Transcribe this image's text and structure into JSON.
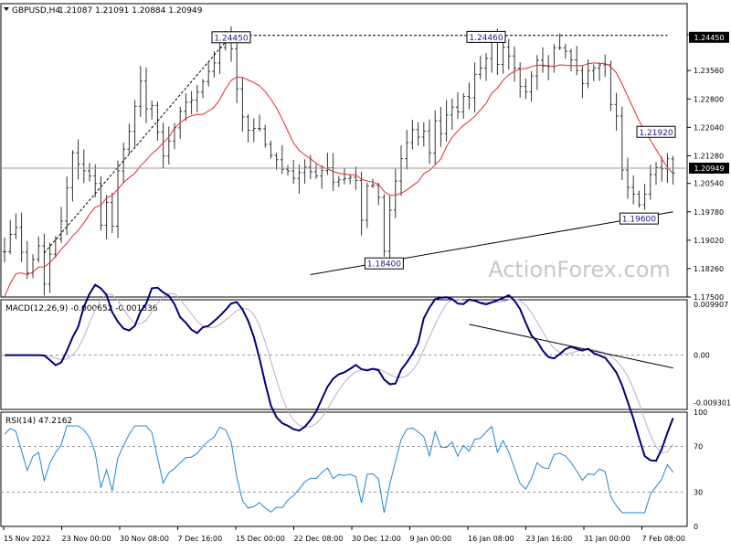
{
  "chart_data": {
    "type": "candlestick",
    "instrument": "GBPUSD,H4",
    "ohlc_label": "1.21087 1.21091 1.20884 1.20949",
    "watermark": "ActionForex.com",
    "colors": {
      "candles": "#333333",
      "ma": "#e8272d",
      "annotation_line": "#000000",
      "price_marker_bg": "#000000",
      "macd_line": "#00007a",
      "macd_signal": "#c7a8c7",
      "rsi_line": "#1f87d0",
      "ref_line": "#9a9a9a",
      "frame": "#000000"
    },
    "x_axis": {
      "labels": [
        "15 Nov 2022",
        "23 Nov 00:00",
        "30 Nov 08:00",
        "7 Dec 16:00",
        "15 Dec 00:00",
        "22 Dec 08:00",
        "30 Dec 12:00",
        "9 Jan 00:00",
        "16 Jan 08:00",
        "23 Jan 16:00",
        "31 Jan 00:00",
        "7 Feb 08:00"
      ]
    },
    "price_panel": {
      "ylim": [
        1.175,
        1.2535
      ],
      "tick_labels": [
        "1.24520",
        "1.23560",
        "1.22800",
        "1.22040",
        "1.21280",
        "1.20540",
        "1.19780",
        "1.19020",
        "1.18260",
        "1.17500"
      ],
      "tick_values": [
        1.2452,
        1.2356,
        1.228,
        1.2204,
        1.2128,
        1.2054,
        1.1978,
        1.1902,
        1.1826,
        1.175
      ],
      "current_price": "1.20949",
      "current_price_value": 1.20949,
      "resistance_level": "1.24450",
      "resistance_value": 1.2445,
      "annotations": [
        {
          "label": "1.24450",
          "bar": 40,
          "value": 1.2445
        },
        {
          "label": "1.24460",
          "bar": 85,
          "value": 1.2446
        },
        {
          "label": "1.18400",
          "bar": 67,
          "value": 1.184
        },
        {
          "label": "1.21920",
          "bar": 115,
          "value": 1.2192
        },
        {
          "label": "1.19600",
          "bar": 112,
          "value": 1.196
        }
      ],
      "trendlines": [
        {
          "from": [
            54,
            1.181
          ],
          "to": [
            118,
            1.1978
          ]
        },
        {
          "from": [
            7,
            1.1868
          ],
          "to": [
            40,
            1.245
          ]
        },
        {
          "from": [
            40,
            1.245
          ],
          "to": [
            117,
            1.245
          ]
        }
      ],
      "close_path": [
        [
          0,
          1.188
        ],
        [
          2,
          1.194
        ],
        [
          4,
          1.181
        ],
        [
          6,
          1.189
        ],
        [
          7,
          1.178
        ],
        [
          8,
          1.186
        ],
        [
          10,
          1.195
        ],
        [
          12,
          1.213
        ],
        [
          14,
          1.209
        ],
        [
          16,
          1.205
        ],
        [
          17,
          1.195
        ],
        [
          18,
          1.2
        ],
        [
          19,
          1.194
        ],
        [
          20,
          1.208
        ],
        [
          22,
          1.22
        ],
        [
          24,
          1.232
        ],
        [
          25,
          1.225
        ],
        [
          26,
          1.226
        ],
        [
          28,
          1.212
        ],
        [
          29,
          1.216
        ],
        [
          31,
          1.225
        ],
        [
          33,
          1.228
        ],
        [
          35,
          1.233
        ],
        [
          37,
          1.238
        ],
        [
          39,
          1.244
        ],
        [
          40,
          1.241
        ],
        [
          41,
          1.23
        ],
        [
          42,
          1.224
        ],
        [
          43,
          1.22
        ],
        [
          45,
          1.22
        ],
        [
          46,
          1.216
        ],
        [
          48,
          1.211
        ],
        [
          50,
          1.209
        ],
        [
          51,
          1.207
        ],
        [
          53,
          1.209
        ],
        [
          55,
          1.208
        ],
        [
          57,
          1.21
        ],
        [
          58,
          1.206
        ],
        [
          60,
          1.207
        ],
        [
          61,
          1.207
        ],
        [
          62,
          1.206
        ],
        [
          63,
          1.196
        ],
        [
          64,
          1.204
        ],
        [
          65,
          1.205
        ],
        [
          66,
          1.201
        ],
        [
          67,
          1.187
        ],
        [
          68,
          1.198
        ],
        [
          69,
          1.206
        ],
        [
          70,
          1.212
        ],
        [
          71,
          1.216
        ],
        [
          72,
          1.219
        ],
        [
          73,
          1.218
        ],
        [
          74,
          1.219
        ],
        [
          75,
          1.214
        ],
        [
          76,
          1.222
        ],
        [
          77,
          1.219
        ],
        [
          78,
          1.224
        ],
        [
          79,
          1.226
        ],
        [
          80,
          1.224
        ],
        [
          81,
          1.228
        ],
        [
          82,
          1.229
        ],
        [
          83,
          1.234
        ],
        [
          84,
          1.237
        ],
        [
          85,
          1.239
        ],
        [
          86,
          1.244
        ],
        [
          87,
          1.238
        ],
        [
          88,
          1.241
        ],
        [
          89,
          1.24
        ],
        [
          90,
          1.236
        ],
        [
          91,
          1.232
        ],
        [
          92,
          1.23
        ],
        [
          93,
          1.234
        ],
        [
          94,
          1.239
        ],
        [
          95,
          1.236
        ],
        [
          96,
          1.236
        ],
        [
          97,
          1.241
        ],
        [
          98,
          1.241
        ],
        [
          99,
          1.24
        ],
        [
          100,
          1.238
        ],
        [
          101,
          1.236
        ],
        [
          102,
          1.233
        ],
        [
          103,
          1.236
        ],
        [
          104,
          1.237
        ],
        [
          105,
          1.238
        ],
        [
          106,
          1.237
        ],
        [
          107,
          1.227
        ],
        [
          108,
          1.223
        ],
        [
          109,
          1.209
        ],
        [
          110,
          1.204
        ],
        [
          111,
          1.203
        ],
        [
          112,
          1.199
        ],
        [
          113,
          1.203
        ],
        [
          114,
          1.208
        ],
        [
          115,
          1.209
        ],
        [
          116,
          1.21
        ],
        [
          117,
          1.212
        ],
        [
          118,
          1.209
        ]
      ]
    },
    "macd_panel": {
      "label": "MACD(12,26,9) -0.000652 -0.001836",
      "ylim": [
        -0.0106,
        0.0108
      ],
      "tick_labels": [
        "0.009907",
        "0.00",
        "-0.009301"
      ],
      "tick_values": [
        0.009907,
        0.0,
        -0.009301
      ],
      "trendline": {
        "from": [
          82,
          0.006
        ],
        "to": [
          118,
          -0.0025
        ]
      }
    },
    "rsi_panel": {
      "label": "RSI(14) 47.2162",
      "ylim": [
        0,
        100
      ],
      "tick_labels": [
        "100",
        "70",
        "30",
        "0"
      ],
      "tick_values": [
        100,
        70,
        30,
        0
      ],
      "levels": [
        70,
        30
      ]
    }
  }
}
